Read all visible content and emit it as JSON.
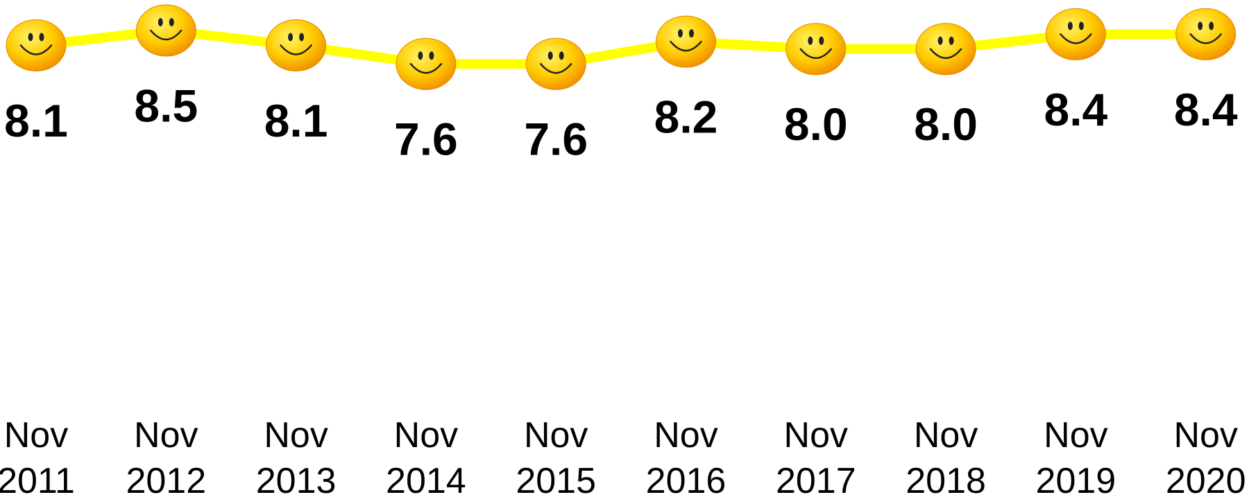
{
  "chart_data": {
    "type": "line",
    "categories": [
      "Nov 2011",
      "Nov 2012",
      "Nov 2013",
      "Nov 2014",
      "Nov 2015",
      "Nov 2016",
      "Nov 2017",
      "Nov 2018",
      "Nov 2019",
      "Nov 2020"
    ],
    "values": [
      8.1,
      8.5,
      8.1,
      7.6,
      7.6,
      8.2,
      8.0,
      8.0,
      8.4,
      8.4
    ],
    "value_labels": [
      "8.1",
      "8.5",
      "8.1",
      "7.6",
      "7.6",
      "8.2",
      "8.0",
      "8.0",
      "8.4",
      "8.4"
    ],
    "color": "#ffff00"
  }
}
